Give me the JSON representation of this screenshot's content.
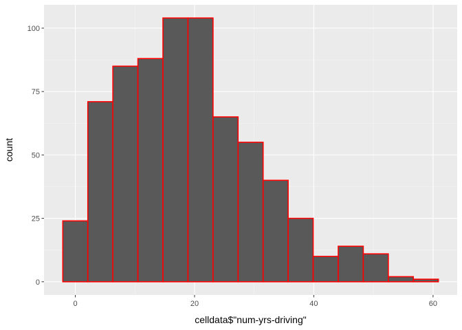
{
  "chart_data": {
    "type": "bar",
    "subtype": "histogram",
    "title": "",
    "xlabel": "celldata$\"num-yrs-driving\"",
    "ylabel": "count",
    "bin_width": 4.2,
    "bins": [
      {
        "x_min": -2.1,
        "x_max": 2.1,
        "count": 24
      },
      {
        "x_min": 2.1,
        "x_max": 6.3,
        "count": 71
      },
      {
        "x_min": 6.3,
        "x_max": 10.5,
        "count": 85
      },
      {
        "x_min": 10.5,
        "x_max": 14.7,
        "count": 88
      },
      {
        "x_min": 14.7,
        "x_max": 18.9,
        "count": 104
      },
      {
        "x_min": 18.9,
        "x_max": 23.1,
        "count": 104
      },
      {
        "x_min": 23.1,
        "x_max": 27.3,
        "count": 65
      },
      {
        "x_min": 27.3,
        "x_max": 31.5,
        "count": 55
      },
      {
        "x_min": 31.5,
        "x_max": 35.7,
        "count": 40
      },
      {
        "x_min": 35.7,
        "x_max": 39.9,
        "count": 25
      },
      {
        "x_min": 39.9,
        "x_max": 44.1,
        "count": 10
      },
      {
        "x_min": 44.1,
        "x_max": 48.3,
        "count": 14
      },
      {
        "x_min": 48.3,
        "x_max": 52.5,
        "count": 11
      },
      {
        "x_min": 52.5,
        "x_max": 56.7,
        "count": 2
      },
      {
        "x_min": 56.7,
        "x_max": 60.9,
        "count": 1
      }
    ],
    "x_ticks": [
      0,
      20,
      40,
      60
    ],
    "x_tick_labels": [
      "0",
      "20",
      "40",
      "60"
    ],
    "y_ticks": [
      0,
      25,
      50,
      75,
      100
    ],
    "y_tick_labels": [
      "0",
      "25",
      "50",
      "75",
      "100"
    ],
    "xlim": [
      -5.25,
      64.05
    ],
    "ylim": [
      -5.2,
      109.2
    ],
    "grid": true,
    "colors": {
      "panel_background": "#ebebeb",
      "grid_major": "#ffffff",
      "grid_minor": "#f5f5f5",
      "bar_fill": "#595959",
      "bar_outline": "#ff0000",
      "tick_mark": "#333333",
      "tick_label": "#4d4d4d"
    }
  }
}
